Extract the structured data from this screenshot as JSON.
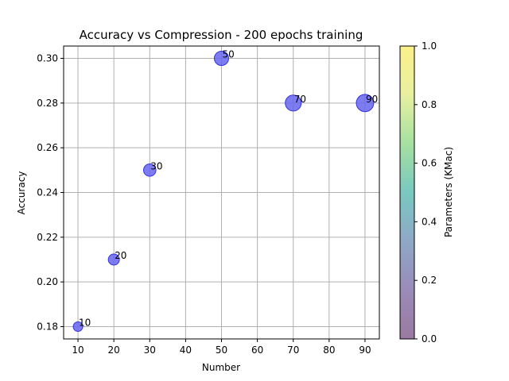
{
  "chart_data": {
    "type": "scatter",
    "title": "Accuracy vs Compression - 200 epochs training",
    "xlabel": "Number",
    "ylabel": "Accuracy",
    "xlim": [
      6.0,
      94.0
    ],
    "ylim": [
      0.1745,
      0.3055
    ],
    "xticks": [
      10,
      20,
      30,
      40,
      50,
      60,
      70,
      80,
      90
    ],
    "yticks": [
      0.18,
      0.2,
      0.22,
      0.24,
      0.26,
      0.28,
      0.3
    ],
    "ytick_labels": [
      "0.18",
      "0.20",
      "0.22",
      "0.24",
      "0.26",
      "0.28",
      "0.30"
    ],
    "grid": true,
    "points": [
      {
        "x": 10,
        "y": 0.18,
        "label": "10"
      },
      {
        "x": 20,
        "y": 0.21,
        "label": "20"
      },
      {
        "x": 30,
        "y": 0.25,
        "label": "30"
      },
      {
        "x": 50,
        "y": 0.3,
        "label": "50"
      },
      {
        "x": 70,
        "y": 0.28,
        "label": "70"
      },
      {
        "x": 90,
        "y": 0.28,
        "label": "90"
      }
    ],
    "marker_color": "#6666ee",
    "marker_edge_color": "#3333dd",
    "colorbar": {
      "label": "Parameters (KMac)",
      "range": [
        0.0,
        1.0
      ],
      "ticks": [
        "0.0",
        "0.2",
        "0.4",
        "0.6",
        "0.8",
        "1.0"
      ],
      "colors": [
        "#9a7aa0",
        "#9a8bb8",
        "#8fa8c6",
        "#78c8c0",
        "#a6e0a0",
        "#e8f0a0",
        "#fbf08a"
      ]
    }
  }
}
